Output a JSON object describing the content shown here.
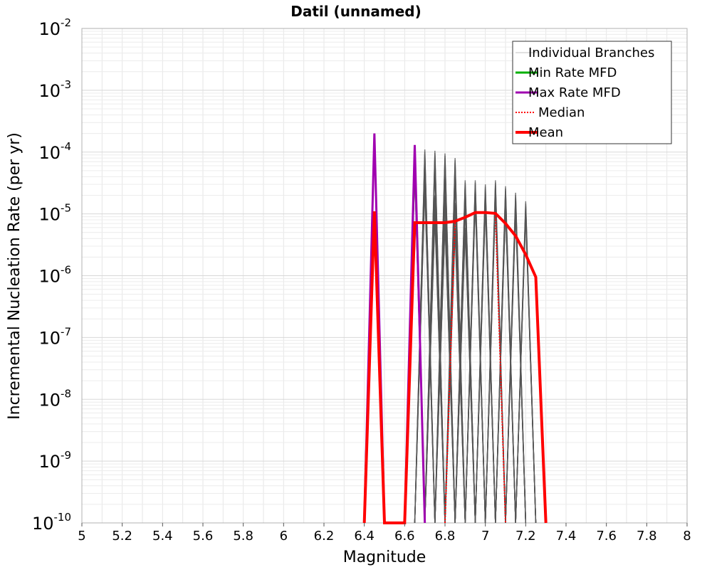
{
  "chart_data": {
    "type": "line",
    "title": "Datil (unnamed)",
    "xlabel": "Magnitude",
    "ylabel": "Incremental Nucleation Rate (per yr)",
    "xlim": [
      5,
      8
    ],
    "ylim_exponent": [
      -10,
      -2
    ],
    "y_scale": "log",
    "grid": true,
    "legend_position": "top-right",
    "x_ticks": [
      "5",
      "5.2",
      "5.4",
      "5.6",
      "5.8",
      "6",
      "6.2",
      "6.4",
      "6.6",
      "6.8",
      "7",
      "7.2",
      "7.4",
      "7.6",
      "7.8",
      "8"
    ],
    "y_ticks": [
      {
        "base": "10",
        "exp": "-2"
      },
      {
        "base": "10",
        "exp": "-3"
      },
      {
        "base": "10",
        "exp": "-4"
      },
      {
        "base": "10",
        "exp": "-5"
      },
      {
        "base": "10",
        "exp": "-6"
      },
      {
        "base": "10",
        "exp": "-7"
      },
      {
        "base": "10",
        "exp": "-8"
      },
      {
        "base": "10",
        "exp": "-9"
      },
      {
        "base": "10",
        "exp": "-10"
      }
    ],
    "legend": [
      {
        "label": "Individual Branches",
        "color": "#c0c0c0",
        "style": "thin"
      },
      {
        "label": "Min Rate MFD",
        "color": "#00b000",
        "style": "solid"
      },
      {
        "label": "Max Rate MFD",
        "color": "#a000b0",
        "style": "solid"
      },
      {
        "label": "Median",
        "color": "#ff0000",
        "style": "dotted"
      },
      {
        "label": "Mean",
        "color": "#ff0000",
        "style": "thick"
      }
    ],
    "series": [
      {
        "name": "Mean",
        "color": "#ff0000",
        "x": [
          6.4,
          6.45,
          6.5,
          6.6,
          6.65,
          6.7,
          6.75,
          6.8,
          6.85,
          6.9,
          6.95,
          7.0,
          7.05,
          7.1,
          7.15,
          7.2,
          7.25,
          7.3
        ],
        "y": [
          1e-10,
          1.1e-05,
          1e-10,
          1e-10,
          7.2e-06,
          7.2e-06,
          7.2e-06,
          7.2e-06,
          7.6e-06,
          8.8e-06,
          1.05e-05,
          1.05e-05,
          1.02e-05,
          7e-06,
          4.4e-06,
          2.2e-06,
          9.5e-07,
          1e-10
        ]
      },
      {
        "name": "Max Rate MFD",
        "color": "#a000b0",
        "x": [
          6.4,
          6.45,
          6.5,
          6.6,
          6.65,
          6.7
        ],
        "y": [
          1e-10,
          0.0002,
          1e-10,
          1e-10,
          0.00013,
          1e-10
        ]
      },
      {
        "name": "Median",
        "color": "#ff0000",
        "x": [
          6.8,
          6.85,
          6.9,
          6.95,
          7.0,
          7.05,
          7.1
        ],
        "y": [
          1e-10,
          7.6e-06,
          8.8e-06,
          1.05e-05,
          1.05e-05,
          1.02e-05,
          1e-10
        ]
      }
    ],
    "branch_families": [
      {
        "x": [
          6.6,
          6.65,
          6.7
        ],
        "ylo": 1e-10,
        "peaks": [
          0.00012,
          5e-05
        ]
      },
      {
        "x": [
          6.65,
          6.7,
          6.75
        ],
        "ylo": 1e-10,
        "peaks": [
          0.00011,
          5.5e-05,
          3e-05
        ]
      },
      {
        "x": [
          6.7,
          6.75,
          6.8
        ],
        "ylo": 1e-10,
        "peaks": [
          0.000105,
          6e-05,
          2e-05,
          1e-05
        ]
      },
      {
        "x": [
          6.75,
          6.8,
          6.85
        ],
        "ylo": 1e-10,
        "peaks": [
          9.5e-05,
          5e-05,
          2e-05,
          8e-06
        ]
      },
      {
        "x": [
          6.8,
          6.85,
          6.9
        ],
        "ylo": 1e-10,
        "peaks": [
          8e-05,
          4e-05,
          1.5e-05,
          6e-06
        ]
      },
      {
        "x": [
          6.85,
          6.9,
          6.95
        ],
        "ylo": 1e-10,
        "peaks": [
          3.5e-05,
          2.5e-05,
          1.5e-05,
          6e-06
        ]
      },
      {
        "x": [
          6.9,
          6.95,
          7.0
        ],
        "ylo": 1e-10,
        "peaks": [
          3.5e-05,
          2.5e-05,
          1.8e-05
        ]
      },
      {
        "x": [
          6.95,
          7.0,
          7.05
        ],
        "ylo": 1e-10,
        "peaks": [
          3e-05,
          2.2e-05,
          1.5e-05
        ]
      },
      {
        "x": [
          7.0,
          7.05,
          7.1
        ],
        "ylo": 1e-10,
        "peaks": [
          3.5e-05,
          2.5e-05,
          1.8e-05
        ]
      },
      {
        "x": [
          7.05,
          7.1,
          7.15
        ],
        "ylo": 1e-10,
        "peaks": [
          2.8e-05,
          2e-05,
          1.4e-05
        ]
      },
      {
        "x": [
          7.1,
          7.15,
          7.2
        ],
        "ylo": 1e-10,
        "peaks": [
          2.2e-05,
          1.6e-05,
          1.2e-05
        ]
      },
      {
        "x": [
          7.15,
          7.2,
          7.25
        ],
        "ylo": 1e-10,
        "peaks": [
          1.6e-05,
          1.3e-05,
          1.1e-05
        ]
      }
    ]
  }
}
